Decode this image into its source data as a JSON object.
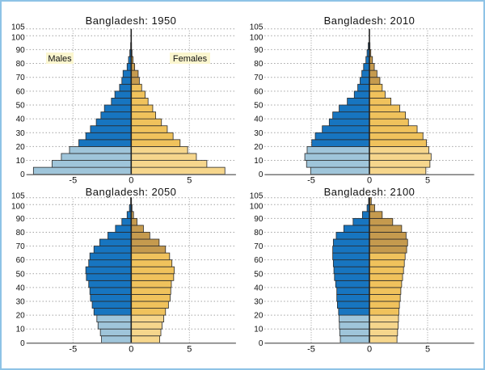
{
  "colors": {
    "male_young": "#9fc5da",
    "male_adult": "#1775c0",
    "female_young": "#f6d68c",
    "female_adult": "#f0c25c",
    "female_old": "#c59a4e",
    "frame": "#8ec3e6",
    "label_bg": "#fbf6cf"
  },
  "labels": {
    "males": "Males",
    "females": "Females"
  },
  "chart_data": [
    {
      "type": "bar",
      "orientation": "horizontal population pyramid",
      "title": "Bangladesh: 1950",
      "xlim": [
        -9,
        9
      ],
      "ylim": [
        0,
        105
      ],
      "xticks": [
        -5,
        0,
        5
      ],
      "yticks": [
        0,
        10,
        20,
        30,
        40,
        50,
        60,
        70,
        80,
        90,
        100,
        105
      ],
      "grid": true,
      "age_start": [
        0,
        5,
        10,
        15,
        20,
        25,
        30,
        35,
        40,
        45,
        50,
        55,
        60,
        65,
        70,
        75,
        80,
        85,
        90,
        95,
        100
      ],
      "males": [
        -8.4,
        -6.8,
        -6.0,
        -5.3,
        -4.5,
        -3.9,
        -3.5,
        -3.0,
        -2.6,
        -2.3,
        -1.7,
        -1.4,
        -1.0,
        -0.8,
        -0.7,
        -0.35,
        -0.23,
        -0.12,
        -0.05,
        0,
        0
      ],
      "females": [
        8.05,
        6.5,
        5.6,
        4.85,
        4.2,
        3.6,
        3.1,
        2.6,
        2.1,
        1.85,
        1.45,
        1.2,
        0.9,
        0.7,
        0.6,
        0.3,
        0.16,
        0.07,
        0.03,
        0,
        0
      ]
    },
    {
      "type": "bar",
      "orientation": "horizontal population pyramid",
      "title": "Bangladesh: 2010",
      "xlim": [
        -9,
        9
      ],
      "ylim": [
        0,
        105
      ],
      "xticks": [
        -5,
        0,
        5
      ],
      "yticks": [
        0,
        10,
        20,
        30,
        40,
        50,
        60,
        70,
        80,
        90,
        100,
        105
      ],
      "grid": true,
      "age_start": [
        0,
        5,
        10,
        15,
        20,
        25,
        30,
        35,
        40,
        45,
        50,
        55,
        60,
        65,
        70,
        75,
        80,
        85,
        90,
        95,
        100
      ],
      "males": [
        -5.05,
        -5.4,
        -5.55,
        -5.35,
        -4.95,
        -4.65,
        -4.05,
        -3.45,
        -3.15,
        -2.6,
        -1.9,
        -1.3,
        -1.0,
        -0.8,
        -0.65,
        -0.5,
        -0.3,
        -0.2,
        -0.1,
        0,
        0
      ],
      "females": [
        4.85,
        5.2,
        5.3,
        5.1,
        4.9,
        4.6,
        4.1,
        3.35,
        3.1,
        2.6,
        1.85,
        1.35,
        1.1,
        0.9,
        0.65,
        0.42,
        0.26,
        0.12,
        0.05,
        0,
        0
      ]
    },
    {
      "type": "bar",
      "orientation": "horizontal population pyramid",
      "title": "Bangladesh: 2050",
      "xlim": [
        -9,
        9
      ],
      "ylim": [
        0,
        105
      ],
      "xticks": [
        -5,
        0,
        5
      ],
      "yticks": [
        0,
        10,
        20,
        30,
        40,
        50,
        60,
        70,
        80,
        90,
        100,
        105
      ],
      "grid": true,
      "age_start": [
        0,
        5,
        10,
        15,
        20,
        25,
        30,
        35,
        40,
        45,
        50,
        55,
        60,
        65,
        70,
        75,
        80,
        85,
        90,
        95,
        100
      ],
      "males": [
        -2.55,
        -2.65,
        -2.85,
        -2.95,
        -3.2,
        -3.35,
        -3.5,
        -3.55,
        -3.65,
        -3.85,
        -3.9,
        -3.65,
        -3.55,
        -3.2,
        -2.7,
        -2.0,
        -1.35,
        -0.8,
        -0.35,
        -0.15,
        -0.05
      ],
      "females": [
        2.45,
        2.55,
        2.65,
        2.8,
        2.95,
        3.2,
        3.35,
        3.4,
        3.45,
        3.65,
        3.7,
        3.5,
        3.3,
        2.95,
        2.4,
        1.6,
        1.05,
        0.5,
        0.2,
        0.07,
        0.02
      ]
    },
    {
      "type": "bar",
      "orientation": "horizontal population pyramid",
      "title": "Bangladesh: 2100",
      "xlim": [
        -9,
        9
      ],
      "ylim": [
        0,
        105
      ],
      "xticks": [
        -5,
        0,
        5
      ],
      "yticks": [
        0,
        10,
        20,
        30,
        40,
        50,
        60,
        70,
        80,
        90,
        100,
        105
      ],
      "grid": true,
      "age_start": [
        0,
        5,
        10,
        15,
        20,
        25,
        30,
        35,
        40,
        45,
        50,
        55,
        60,
        65,
        70,
        75,
        80,
        85,
        90,
        95,
        100
      ],
      "males": [
        -2.5,
        -2.55,
        -2.58,
        -2.6,
        -2.65,
        -2.75,
        -2.8,
        -2.8,
        -2.9,
        -3.0,
        -3.05,
        -3.1,
        -3.15,
        -3.15,
        -3.1,
        -2.85,
        -2.2,
        -1.4,
        -0.6,
        -0.2,
        -0.07
      ],
      "females": [
        2.37,
        2.42,
        2.47,
        2.5,
        2.53,
        2.58,
        2.65,
        2.7,
        2.77,
        2.85,
        2.93,
        3.0,
        3.07,
        3.2,
        3.28,
        3.15,
        2.77,
        2.0,
        1.1,
        0.45,
        0.16
      ]
    }
  ]
}
